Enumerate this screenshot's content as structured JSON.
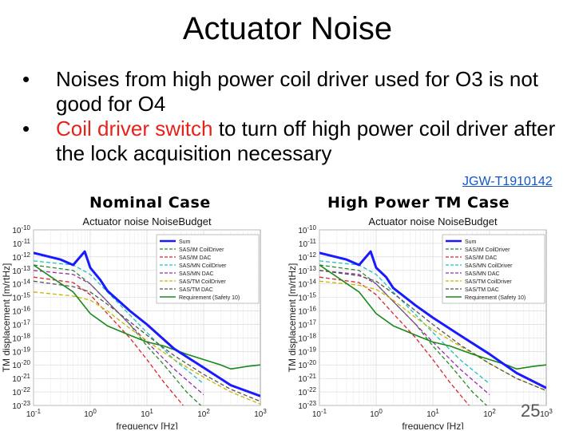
{
  "slide": {
    "title": "Actuator Noise",
    "bullets": [
      {
        "parts": [
          {
            "text": "Noises from high power coil driver used for O3 is not good for O4",
            "red": false
          }
        ]
      },
      {
        "parts": [
          {
            "text": "Coil driver switch",
            "red": true
          },
          {
            "text": " to turn off high power coil driver after the lock acquisition necessary",
            "red": false
          }
        ]
      }
    ],
    "reference": "JGW-T1910142",
    "page_number": "25",
    "colors": {
      "accent_red": "#e8221a",
      "link_blue": "#1155cc"
    }
  },
  "chart_data": [
    {
      "type": "line",
      "panel_label": "Nominal Case",
      "title": "Actuator noise NoiseBudget",
      "xlabel": "frequency [Hz]",
      "ylabel": "TM displacement [m/rtHz]",
      "xscale": "log",
      "yscale": "log",
      "xlim": [
        0.1,
        1000
      ],
      "ylim": [
        1e-23,
        1e-10
      ],
      "xticks": [
        "10^-1",
        "10^0",
        "10^1",
        "10^2",
        "10^3"
      ],
      "yticks": [
        "10^-10",
        "10^-11",
        "10^-12",
        "10^-13",
        "10^-14",
        "10^-15",
        "10^-16",
        "10^-17",
        "10^-18",
        "10^-19",
        "10^-20",
        "10^-21",
        "10^-22",
        "10^-23"
      ],
      "grid": true,
      "legend_position": "top-right",
      "series": [
        {
          "name": "Sum",
          "color": "#1a1aff",
          "style": "solid",
          "width": 3,
          "x": [
            0.1,
            0.3,
            0.5,
            0.8,
            1,
            1.5,
            2,
            5,
            10,
            30,
            100,
            300,
            1000
          ],
          "y": [
            -11.7,
            -12.2,
            -12.6,
            -11.6,
            -12.8,
            -13.7,
            -14.5,
            -16.0,
            -17.0,
            -18.8,
            -20.2,
            -21.5,
            -22.3
          ]
        },
        {
          "name": "SAS/IM CoilDriver",
          "color": "#2a8a2a",
          "style": "dash",
          "x": [
            0.1,
            0.5,
            1,
            2,
            5,
            10,
            20,
            50,
            100
          ],
          "y": [
            -12.6,
            -13.0,
            -14.0,
            -15.3,
            -17.0,
            -18.6,
            -20.0,
            -22.0,
            -23.2
          ]
        },
        {
          "name": "SAS/IM DAC",
          "color": "#d9262c",
          "style": "dash",
          "x": [
            0.1,
            0.5,
            1,
            2,
            5,
            10,
            20,
            50
          ],
          "y": [
            -13.5,
            -13.9,
            -14.8,
            -16.2,
            -18.0,
            -19.6,
            -21.3,
            -23.3
          ]
        },
        {
          "name": "SAS/MN CoilDriver",
          "color": "#20c0c0",
          "style": "dash",
          "x": [
            0.1,
            0.5,
            1,
            2,
            5,
            10,
            30,
            100
          ],
          "y": [
            -12.3,
            -12.6,
            -13.3,
            -14.6,
            -16.3,
            -17.6,
            -19.6,
            -21.4
          ]
        },
        {
          "name": "SAS/MN DAC",
          "color": "#9a2ab0",
          "style": "dash",
          "x": [
            0.1,
            0.5,
            1,
            2,
            5,
            10,
            30,
            100
          ],
          "y": [
            -13.0,
            -13.3,
            -14.0,
            -15.3,
            -17.0,
            -18.3,
            -20.3,
            -22.2
          ]
        },
        {
          "name": "SAS/TM CoilDriver",
          "color": "#c8b400",
          "style": "dash",
          "x": [
            0.1,
            0.5,
            1,
            2,
            5,
            10,
            30,
            100,
            300,
            1000
          ],
          "y": [
            -14.6,
            -14.9,
            -15.2,
            -16.0,
            -17.3,
            -18.2,
            -19.6,
            -20.9,
            -22.0,
            -22.9
          ]
        },
        {
          "name": "SAS/TM DAC",
          "color": "#555555",
          "style": "dash",
          "x": [
            0.1,
            0.5,
            1,
            2,
            5,
            10,
            30,
            100,
            300,
            1000
          ],
          "y": [
            -13.8,
            -14.2,
            -14.6,
            -15.5,
            -16.8,
            -17.8,
            -19.3,
            -20.7,
            -21.8,
            -22.7
          ]
        },
        {
          "name": "Requirement (Safety 10)",
          "color": "#1a8a1a",
          "style": "solid",
          "width": 1.6,
          "x": [
            0.1,
            0.5,
            1,
            2,
            5,
            10,
            20,
            50,
            100,
            200,
            300,
            600,
            1000
          ],
          "y": [
            -12.6,
            -14.6,
            -16.2,
            -17.1,
            -17.8,
            -18.3,
            -18.6,
            -19.2,
            -19.6,
            -20.0,
            -20.3,
            -20.1,
            -20.0
          ]
        }
      ]
    },
    {
      "type": "line",
      "panel_label": "High Power TM Case",
      "title": "Actuator noise NoiseBudget",
      "xlabel": "frequency [Hz]",
      "ylabel": "TM displacement [m/rtHz]",
      "xscale": "log",
      "yscale": "log",
      "xlim": [
        0.1,
        1000
      ],
      "ylim": [
        1e-23,
        1e-10
      ],
      "xticks": [
        "10^-1",
        "10^0",
        "10^1",
        "10^2",
        "10^3"
      ],
      "yticks": [
        "10^-10",
        "10^-11",
        "10^-12",
        "10^-13",
        "10^-14",
        "10^-15",
        "10^-16",
        "10^-17",
        "10^-18",
        "10^-19",
        "10^-20",
        "10^-21",
        "10^-22",
        "10^-23"
      ],
      "grid": true,
      "legend_position": "top-right",
      "series": [
        {
          "name": "Sum",
          "color": "#1a1aff",
          "style": "solid",
          "width": 3,
          "x": [
            0.1,
            0.3,
            0.5,
            0.8,
            1,
            1.5,
            2,
            5,
            10,
            30,
            100,
            300,
            1000
          ],
          "y": [
            -11.7,
            -12.2,
            -12.6,
            -11.6,
            -12.8,
            -13.5,
            -14.3,
            -15.6,
            -16.5,
            -17.8,
            -19.2,
            -20.6,
            -21.7
          ]
        },
        {
          "name": "SAS/IM CoilDriver",
          "color": "#2a8a2a",
          "style": "dash",
          "x": [
            0.1,
            0.5,
            1,
            2,
            5,
            10,
            20,
            50,
            100
          ],
          "y": [
            -12.6,
            -13.0,
            -14.0,
            -15.3,
            -17.0,
            -18.6,
            -20.0,
            -22.0,
            -23.2
          ]
        },
        {
          "name": "SAS/IM DAC",
          "color": "#d9262c",
          "style": "dash",
          "x": [
            0.1,
            0.5,
            1,
            2,
            5,
            10,
            20,
            50
          ],
          "y": [
            -13.5,
            -13.9,
            -14.8,
            -16.2,
            -18.0,
            -19.6,
            -21.3,
            -23.3
          ]
        },
        {
          "name": "SAS/MN CoilDriver",
          "color": "#20c0c0",
          "style": "dash",
          "x": [
            0.1,
            0.5,
            1,
            2,
            5,
            10,
            30,
            100
          ],
          "y": [
            -12.3,
            -12.6,
            -13.3,
            -14.6,
            -16.3,
            -17.6,
            -19.6,
            -21.4
          ]
        },
        {
          "name": "SAS/MN DAC",
          "color": "#9a2ab0",
          "style": "dash",
          "x": [
            0.1,
            0.5,
            1,
            2,
            5,
            10,
            30,
            100
          ],
          "y": [
            -13.0,
            -13.3,
            -14.0,
            -15.3,
            -17.0,
            -18.3,
            -20.3,
            -22.2
          ]
        },
        {
          "name": "SAS/TM CoilDriver",
          "color": "#c8b400",
          "style": "dash",
          "x": [
            0.1,
            0.5,
            1,
            2,
            5,
            10,
            30,
            100,
            300,
            1000
          ],
          "y": [
            -13.8,
            -14.1,
            -14.4,
            -15.2,
            -16.5,
            -17.4,
            -18.6,
            -19.9,
            -21.0,
            -21.9
          ]
        },
        {
          "name": "SAS/TM DAC",
          "color": "#555555",
          "style": "dash",
          "x": [
            0.1,
            0.5,
            1,
            2,
            5,
            10,
            30,
            100,
            300,
            1000
          ],
          "y": [
            -13.0,
            -13.4,
            -13.8,
            -14.7,
            -16.0,
            -17.0,
            -18.5,
            -19.9,
            -21.0,
            -21.9
          ]
        },
        {
          "name": "Requirement (Safety 10)",
          "color": "#1a8a1a",
          "style": "solid",
          "width": 1.6,
          "x": [
            0.1,
            0.5,
            1,
            2,
            5,
            10,
            20,
            50,
            100,
            200,
            300,
            600,
            1000
          ],
          "y": [
            -12.6,
            -14.6,
            -16.2,
            -17.1,
            -17.8,
            -18.3,
            -18.6,
            -19.2,
            -19.6,
            -20.0,
            -20.3,
            -20.1,
            -20.0
          ]
        }
      ]
    }
  ]
}
